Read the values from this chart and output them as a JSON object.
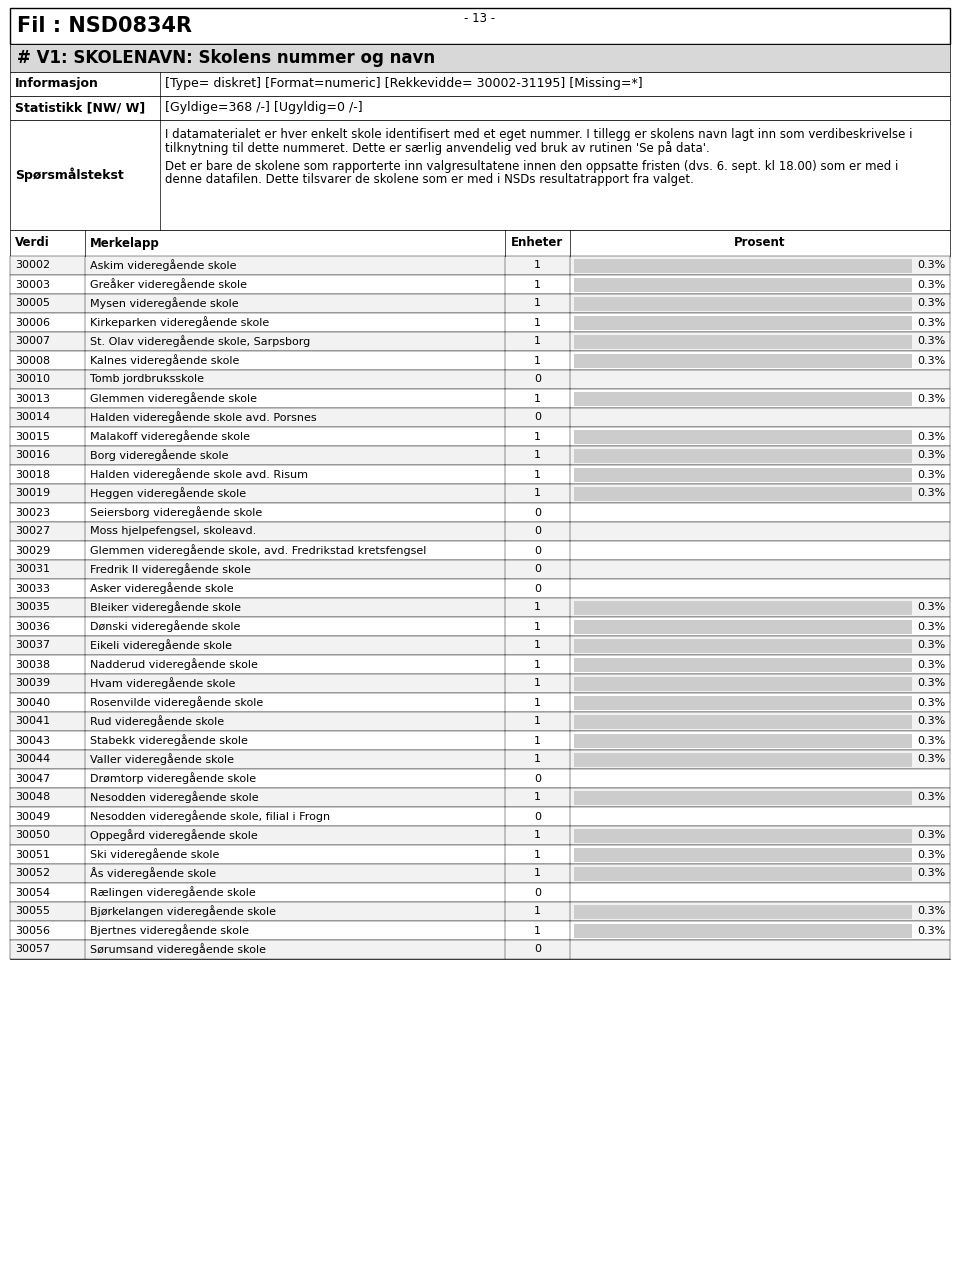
{
  "title": "Fil : NSD0834R",
  "section_header": "# V1: SKOLENAVN: Skolens nummer og navn",
  "info_rows": [
    [
      "Informasjon",
      "[Type= diskret] [Format=numeric] [Rekkevidde= 30002-31195] [Missing=*]"
    ],
    [
      "Statistikk [NW/ W]",
      "[Gyldige=368 /-] [Ugyldig=0 /-]"
    ],
    [
      "Spørsmålstekst",
      "I datamaterialet er hver enkelt skole identifisert med et eget nummer. I tillegg er skolens navn lagt inn som verdibeskrivelse i\ntilknytning til dette nummeret. Dette er særlig anvendelig ved bruk av rutinen 'Se på data'.\n\nDet er bare de skolene som rapporterte inn valgresultatene innen den oppsatte fristen (dvs. 6. sept. kl 18.00) som er med i\ndenne datafilen. Dette tilsvarer de skolene som er med i NSDs resultatrapport fra valget."
    ]
  ],
  "table_headers": [
    "Verdi",
    "Merkelapp",
    "Enheter",
    "Prosent"
  ],
  "rows": [
    [
      "30002",
      "Askim videregående skole",
      "1",
      0.3
    ],
    [
      "30003",
      "Greåker videregående skole",
      "1",
      0.3
    ],
    [
      "30005",
      "Mysen videregående skole",
      "1",
      0.3
    ],
    [
      "30006",
      "Kirkeparken videregående skole",
      "1",
      0.3
    ],
    [
      "30007",
      "St. Olav videregående skole, Sarpsborg",
      "1",
      0.3
    ],
    [
      "30008",
      "Kalnes videregående skole",
      "1",
      0.3
    ],
    [
      "30010",
      "Tomb jordbruksskole",
      "0",
      null
    ],
    [
      "30013",
      "Glemmen videregående skole",
      "1",
      0.3
    ],
    [
      "30014",
      "Halden videregående skole avd. Porsnes",
      "0",
      null
    ],
    [
      "30015",
      "Malakoff videregående skole",
      "1",
      0.3
    ],
    [
      "30016",
      "Borg videregående skole",
      "1",
      0.3
    ],
    [
      "30018",
      "Halden videregående skole avd. Risum",
      "1",
      0.3
    ],
    [
      "30019",
      "Heggen videregående skole",
      "1",
      0.3
    ],
    [
      "30023",
      "Seiersborg videregående skole",
      "0",
      null
    ],
    [
      "30027",
      "Moss hjelpefengsel, skoleavd.",
      "0",
      null
    ],
    [
      "30029",
      "Glemmen videregående skole, avd. Fredrikstad kretsfengsel",
      "0",
      null
    ],
    [
      "30031",
      "Fredrik II videregående skole",
      "0",
      null
    ],
    [
      "30033",
      "Asker videregående skole",
      "0",
      null
    ],
    [
      "30035",
      "Bleiker videregående skole",
      "1",
      0.3
    ],
    [
      "30036",
      "Dønski videregående skole",
      "1",
      0.3
    ],
    [
      "30037",
      "Eikeli videregående skole",
      "1",
      0.3
    ],
    [
      "30038",
      "Nadderud videregående skole",
      "1",
      0.3
    ],
    [
      "30039",
      "Hvam videregående skole",
      "1",
      0.3
    ],
    [
      "30040",
      "Rosenvilde videregående skole",
      "1",
      0.3
    ],
    [
      "30041",
      "Rud videregående skole",
      "1",
      0.3
    ],
    [
      "30043",
      "Stabekk videregående skole",
      "1",
      0.3
    ],
    [
      "30044",
      "Valler videregående skole",
      "1",
      0.3
    ],
    [
      "30047",
      "Drømtorp videregående skole",
      "0",
      null
    ],
    [
      "30048",
      "Nesodden videregående skole",
      "1",
      0.3
    ],
    [
      "30049",
      "Nesodden videregående skole, filial i Frogn",
      "0",
      null
    ],
    [
      "30050",
      "Oppegård videregående skole",
      "1",
      0.3
    ],
    [
      "30051",
      "Ski videregående skole",
      "1",
      0.3
    ],
    [
      "30052",
      "Ås videregående skole",
      "1",
      0.3
    ],
    [
      "30054",
      "Rælingen videregående skole",
      "0",
      null
    ],
    [
      "30055",
      "Bjørkelangen videregående skole",
      "1",
      0.3
    ],
    [
      "30056",
      "Bjertnes videregående skole",
      "1",
      0.3
    ],
    [
      "30057",
      "Sørumsand videregående skole",
      "0",
      null
    ]
  ],
  "footer": "- 13 -",
  "bg_color": "#ffffff",
  "section_bg": "#d8d8d8",
  "bar_color": "#cccccc",
  "border_color": "#000000",
  "title_fontsize": 15,
  "section_fontsize": 12,
  "info_label_fontsize": 9,
  "body_fontsize": 8.5
}
